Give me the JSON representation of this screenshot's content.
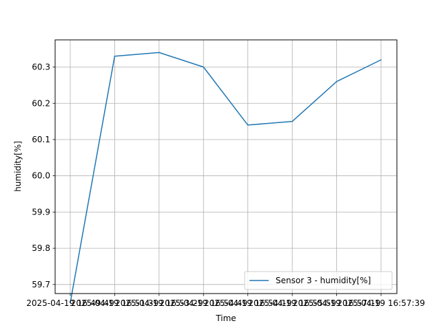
{
  "chart_data": {
    "type": "line",
    "xlabel": "Time",
    "ylabel": "humidity[%]",
    "ylim": [
      59.675,
      60.375
    ],
    "grid": true,
    "legend_position": "lower-right",
    "categories": [
      "2025-04-19 16:49:49",
      "2025-04-19 16:51:39",
      "2025-04-19 16:53:29",
      "2025-04-19 16:54:49",
      "2025-04-19 16:54:19",
      "2025-04-19 16:55:59",
      "2025-04-19 16:57:19",
      "2025-04-19 16:57:39"
    ],
    "y_ticks": [
      "59.7",
      "59.8",
      "59.9",
      "60.0",
      "60.1",
      "60.2",
      "60.3"
    ],
    "series": [
      {
        "name": "Sensor 3 -  humidity[%]",
        "color": "#1f77b4",
        "values": [
          59.65,
          60.33,
          60.34,
          60.3,
          60.14,
          60.15,
          60.26,
          60.32
        ]
      }
    ]
  }
}
